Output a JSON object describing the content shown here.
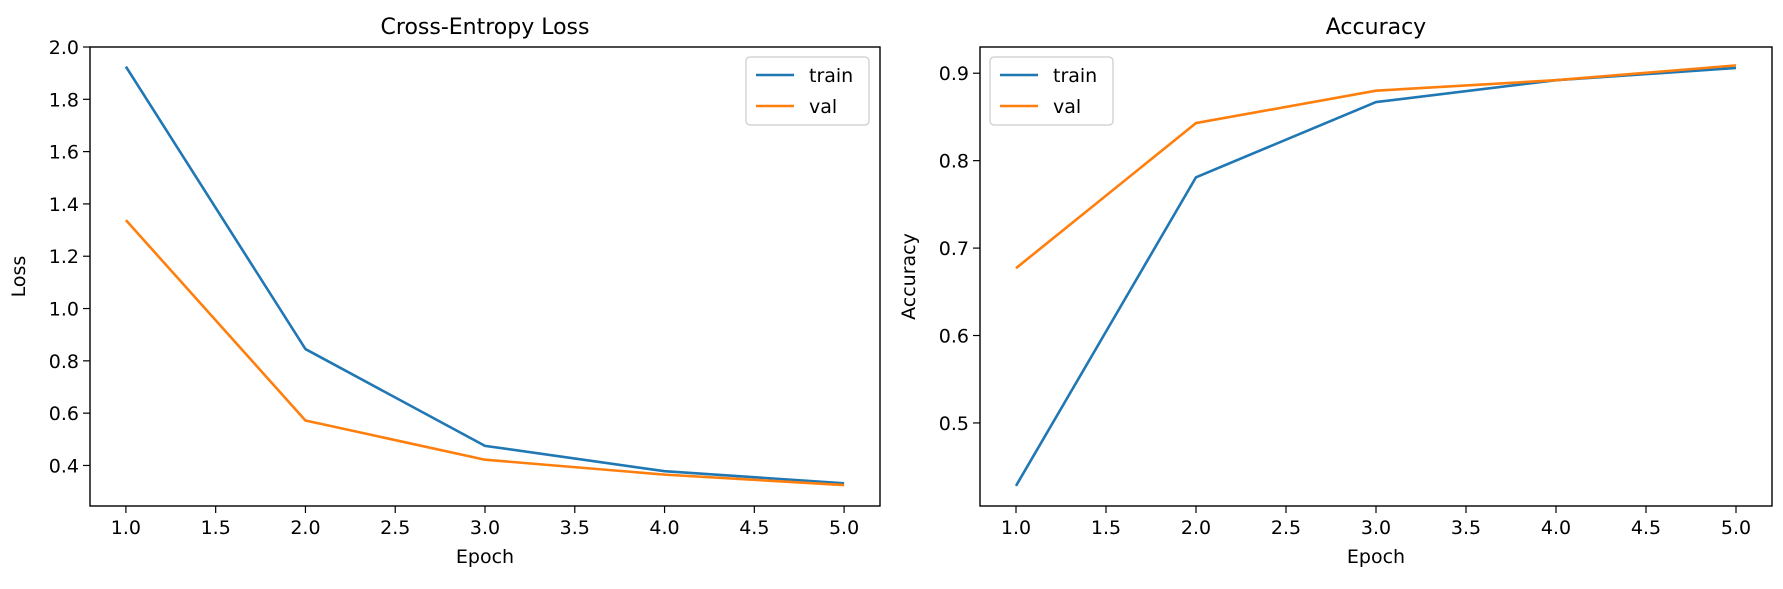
{
  "chart_data": [
    {
      "type": "line",
      "title": "Cross-Entropy Loss",
      "xlabel": "Epoch",
      "ylabel": "Loss",
      "x": [
        1.0,
        2.0,
        3.0,
        4.0,
        5.0
      ],
      "xlim": [
        0.8,
        5.2
      ],
      "ylim": [
        0.245,
        2.0
      ],
      "xticks": [
        "1.0",
        "1.5",
        "2.0",
        "2.5",
        "3.0",
        "3.5",
        "4.0",
        "4.5",
        "5.0"
      ],
      "yticks": [
        "0.4",
        "0.6",
        "0.8",
        "1.0",
        "1.2",
        "1.4",
        "1.6",
        "1.8",
        "2.0"
      ],
      "legend": "top-right",
      "grid": false,
      "series": [
        {
          "name": "train",
          "color": "#1f77b4",
          "values": [
            1.925,
            0.845,
            0.475,
            0.378,
            0.332
          ]
        },
        {
          "name": "val",
          "color": "#ff7f0e",
          "values": [
            1.338,
            0.572,
            0.422,
            0.365,
            0.325
          ]
        }
      ]
    },
    {
      "type": "line",
      "title": "Accuracy",
      "xlabel": "Epoch",
      "ylabel": "Accuracy",
      "x": [
        1.0,
        2.0,
        3.0,
        4.0,
        5.0
      ],
      "xlim": [
        0.8,
        5.2
      ],
      "ylim": [
        0.405,
        0.93
      ],
      "xticks": [
        "1.0",
        "1.5",
        "2.0",
        "2.5",
        "3.0",
        "3.5",
        "4.0",
        "4.5",
        "5.0"
      ],
      "yticks": [
        "0.5",
        "0.6",
        "0.7",
        "0.8",
        "0.9"
      ],
      "legend": "top-left",
      "grid": false,
      "series": [
        {
          "name": "train",
          "color": "#1f77b4",
          "values": [
            0.428,
            0.781,
            0.867,
            0.892,
            0.906
          ]
        },
        {
          "name": "val",
          "color": "#ff7f0e",
          "values": [
            0.677,
            0.843,
            0.88,
            0.892,
            0.909
          ]
        }
      ]
    }
  ]
}
